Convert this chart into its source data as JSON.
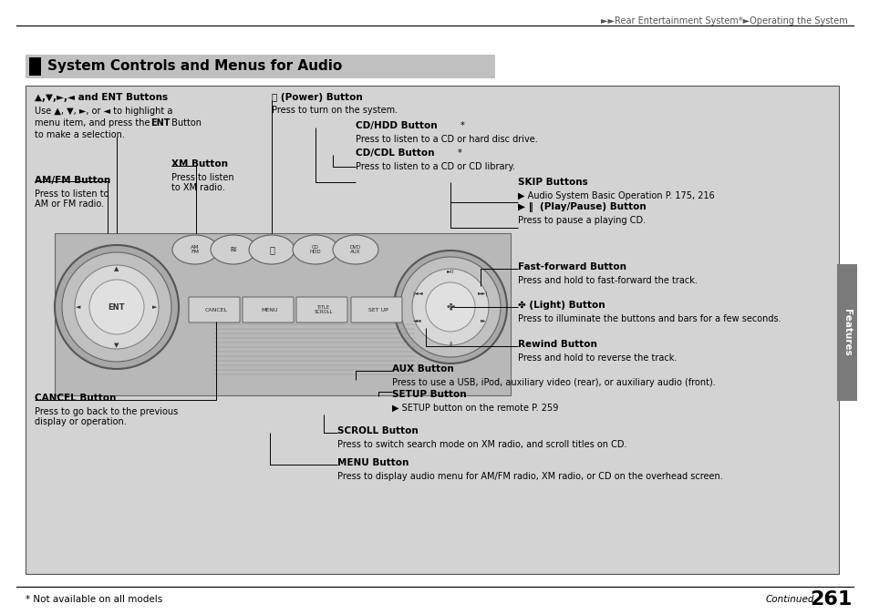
{
  "bg_color": "#ffffff",
  "content_bg": "#d3d3d3",
  "title_bg": "#c0c0c0",
  "header_text": "►►Rear Entertainment System*►Operating the System",
  "section_title": "System Controls and Menus for Audio",
  "footer_left": "* Not available on all models",
  "footer_right_italic": "Continued",
  "footer_page": "261",
  "features_tab_text": "Features",
  "features_tab_bg": "#7a7a7a",
  "panel_bg": "#b0b0b0",
  "panel_dark": "#888888",
  "wheel_outer": "#909090",
  "wheel_mid": "#c8c8c8",
  "wheel_inner": "#e0e0e0"
}
